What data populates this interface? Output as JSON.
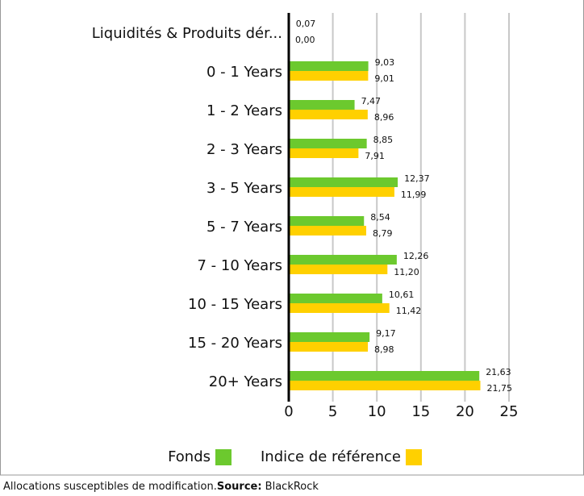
{
  "chart_data": {
    "type": "bar",
    "orientation": "horizontal",
    "categories": [
      "Liquidités & Produits dér...",
      "0 - 1 Years",
      "1 - 2 Years",
      "2 - 3 Years",
      "3 - 5 Years",
      "5 - 7 Years",
      "7 - 10 Years",
      "10 - 15 Years",
      "15 - 20 Years",
      "20+ Years"
    ],
    "series": [
      {
        "name": "Fonds",
        "color": "#6cc92e",
        "values": [
          0.07,
          9.03,
          7.47,
          8.85,
          12.37,
          8.54,
          12.26,
          10.61,
          9.17,
          21.63
        ],
        "value_labels": [
          "0,07",
          "9,03",
          "7,47",
          "8,85",
          "12,37",
          "8,54",
          "12,26",
          "10,61",
          "9,17",
          "21,63"
        ]
      },
      {
        "name": "Indice de référence",
        "color": "#ffd000",
        "values": [
          0.0,
          9.01,
          8.96,
          7.91,
          11.99,
          8.79,
          11.2,
          11.42,
          8.98,
          21.75
        ],
        "value_labels": [
          "0,00",
          "9,01",
          "8,96",
          "7,91",
          "11,99",
          "8,79",
          "11,20",
          "11,42",
          "8,98",
          "21,75"
        ]
      }
    ],
    "xlim": [
      0,
      25
    ],
    "xticks": [
      0,
      5,
      10,
      15,
      20,
      25
    ],
    "grid": true
  },
  "footer": {
    "note": "Allocations susceptibles de modification.",
    "source_label": "Source:",
    "source": " BlackRock"
  }
}
